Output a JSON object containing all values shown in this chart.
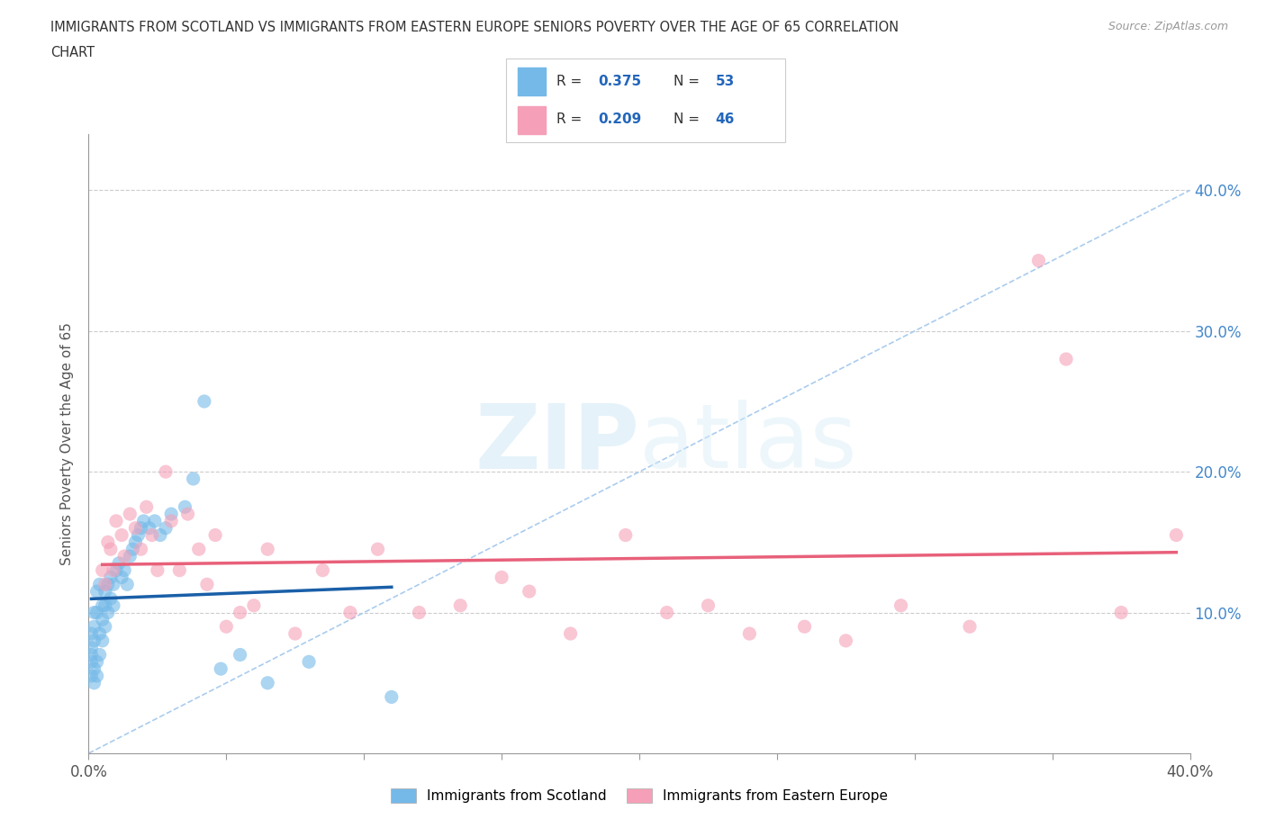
{
  "title_line1": "IMMIGRANTS FROM SCOTLAND VS IMMIGRANTS FROM EASTERN EUROPE SENIORS POVERTY OVER THE AGE OF 65 CORRELATION",
  "title_line2": "CHART",
  "source": "Source: ZipAtlas.com",
  "ylabel": "Seniors Poverty Over the Age of 65",
  "xmin": 0.0,
  "xmax": 0.4,
  "ymin": 0.0,
  "ymax": 0.44,
  "ytick_positions": [
    0.1,
    0.2,
    0.3,
    0.4
  ],
  "ytick_labels": [
    "10.0%",
    "20.0%",
    "30.0%",
    "40.0%"
  ],
  "xtick_positions": [
    0.0,
    0.05,
    0.1,
    0.15,
    0.2,
    0.25,
    0.3,
    0.35,
    0.4
  ],
  "xtick_labels": [
    "0.0%",
    "",
    "",
    "",
    "",
    "",
    "",
    "",
    "40.0%"
  ],
  "scotland_color": "#74b9e8",
  "eastern_europe_color": "#f5a0b8",
  "trend_scotland_color": "#1a5fa8",
  "trend_eastern_europe_color": "#e8607a",
  "trend_dashed_color": "#aaccee",
  "R_scotland": 0.375,
  "N_scotland": 53,
  "R_eastern": 0.209,
  "N_eastern": 46,
  "scotland_x": [
    0.001,
    0.001,
    0.001,
    0.001,
    0.001,
    0.002,
    0.002,
    0.002,
    0.002,
    0.002,
    0.003,
    0.003,
    0.003,
    0.003,
    0.004,
    0.004,
    0.004,
    0.005,
    0.005,
    0.005,
    0.006,
    0.006,
    0.006,
    0.007,
    0.007,
    0.008,
    0.008,
    0.009,
    0.009,
    0.01,
    0.011,
    0.012,
    0.013,
    0.014,
    0.015,
    0.016,
    0.017,
    0.018,
    0.019,
    0.02,
    0.022,
    0.024,
    0.026,
    0.028,
    0.03,
    0.035,
    0.038,
    0.042,
    0.048,
    0.055,
    0.065,
    0.08,
    0.11
  ],
  "scotland_y": [
    0.055,
    0.07,
    0.065,
    0.075,
    0.085,
    0.06,
    0.05,
    0.09,
    0.1,
    0.08,
    0.065,
    0.055,
    0.1,
    0.115,
    0.07,
    0.085,
    0.12,
    0.08,
    0.095,
    0.105,
    0.09,
    0.105,
    0.115,
    0.1,
    0.12,
    0.11,
    0.125,
    0.105,
    0.12,
    0.13,
    0.135,
    0.125,
    0.13,
    0.12,
    0.14,
    0.145,
    0.15,
    0.155,
    0.16,
    0.165,
    0.16,
    0.165,
    0.155,
    0.16,
    0.17,
    0.175,
    0.195,
    0.25,
    0.06,
    0.07,
    0.05,
    0.065,
    0.04
  ],
  "eastern_x": [
    0.005,
    0.006,
    0.007,
    0.008,
    0.009,
    0.01,
    0.012,
    0.013,
    0.015,
    0.017,
    0.019,
    0.021,
    0.023,
    0.025,
    0.028,
    0.03,
    0.033,
    0.036,
    0.04,
    0.043,
    0.046,
    0.05,
    0.055,
    0.06,
    0.065,
    0.075,
    0.085,
    0.095,
    0.105,
    0.12,
    0.135,
    0.15,
    0.16,
    0.175,
    0.195,
    0.21,
    0.225,
    0.24,
    0.26,
    0.275,
    0.295,
    0.32,
    0.345,
    0.355,
    0.375,
    0.395
  ],
  "eastern_y": [
    0.13,
    0.12,
    0.15,
    0.145,
    0.13,
    0.165,
    0.155,
    0.14,
    0.17,
    0.16,
    0.145,
    0.175,
    0.155,
    0.13,
    0.2,
    0.165,
    0.13,
    0.17,
    0.145,
    0.12,
    0.155,
    0.09,
    0.1,
    0.105,
    0.145,
    0.085,
    0.13,
    0.1,
    0.145,
    0.1,
    0.105,
    0.125,
    0.115,
    0.085,
    0.155,
    0.1,
    0.105,
    0.085,
    0.09,
    0.08,
    0.105,
    0.09,
    0.35,
    0.28,
    0.1,
    0.155
  ]
}
